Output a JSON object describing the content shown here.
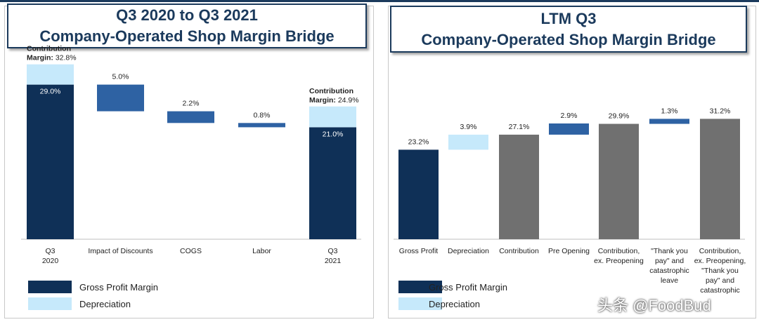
{
  "colors": {
    "dark": "#0f3057",
    "mid": "#2e62a3",
    "light": "#c6e9fb",
    "gray": "#707070",
    "title": "#1b3a5c"
  },
  "left": {
    "title_line1": "Q3 2020 to Q3 2021",
    "title_line2": "Company-Operated Shop Margin Bridge",
    "legend": [
      "Gross Profit Margin",
      "Depreciation"
    ]
  },
  "right": {
    "title_line1": "LTM Q3",
    "title_line2": "Company-Operated Shop Margin Bridge",
    "legend": [
      "Gross Profit Margin",
      "Depreciation"
    ]
  },
  "watermark": "头条 @FoodBud",
  "chart_data": [
    {
      "type": "bar",
      "subtype": "waterfall",
      "title": "Q3 2020 to Q3 2021 Company-Operated Shop Margin Bridge",
      "categories": [
        [
          "Q3",
          "2020"
        ],
        [
          "Impact of Discounts"
        ],
        [
          "COGS"
        ],
        [
          "Labor"
        ],
        [
          "Q3",
          "2021"
        ]
      ],
      "ylim": [
        0,
        35
      ],
      "bars": [
        {
          "kind": "stack",
          "gross": 29.0,
          "dep": 3.8,
          "total": 32.8,
          "gross_label": "29.0%",
          "top_label": [
            "Contribution",
            "Margin: 32.8%"
          ]
        },
        {
          "kind": "float",
          "from": 29.0,
          "to": 24.0,
          "label": "5.0%"
        },
        {
          "kind": "float",
          "from": 24.0,
          "to": 21.8,
          "label": "2.2%"
        },
        {
          "kind": "float",
          "from": 21.8,
          "to": 21.0,
          "label": "0.8%"
        },
        {
          "kind": "stack",
          "gross": 21.0,
          "dep": 3.9,
          "total": 24.9,
          "gross_label": "21.0%",
          "top_label": [
            "Contribution",
            "Margin: 24.9%"
          ]
        }
      ]
    },
    {
      "type": "bar",
      "subtype": "waterfall",
      "title": "LTM Q3 Company-Operated Shop Margin Bridge",
      "categories": [
        [
          "Gross Profit"
        ],
        [
          "Depreciation"
        ],
        [
          "Contribution"
        ],
        [
          "Pre Opening"
        ],
        [
          "Contribution,",
          "ex. Preopening"
        ],
        [
          "\"Thank you",
          "pay\" and",
          "catastrophic",
          "leave"
        ],
        [
          "Contribution,",
          "ex. Preopening,",
          "\"Thank you",
          "pay\" and",
          "catastrophic"
        ]
      ],
      "ylim": [
        0,
        35
      ],
      "bars": [
        {
          "kind": "total",
          "color": "dark",
          "value": 23.2,
          "label": "23.2%"
        },
        {
          "kind": "float",
          "color": "light",
          "from": 23.2,
          "to": 27.1,
          "label": "3.9%"
        },
        {
          "kind": "total",
          "color": "gray",
          "value": 27.1,
          "label": "27.1%"
        },
        {
          "kind": "float",
          "color": "mid",
          "from": 27.1,
          "to": 30.0,
          "label": "2.9%"
        },
        {
          "kind": "total",
          "color": "gray",
          "value": 29.9,
          "label": "29.9%"
        },
        {
          "kind": "float",
          "color": "mid",
          "from": 29.9,
          "to": 31.2,
          "label": "1.3%"
        },
        {
          "kind": "total",
          "color": "gray",
          "value": 31.2,
          "label": "31.2%"
        }
      ]
    }
  ]
}
